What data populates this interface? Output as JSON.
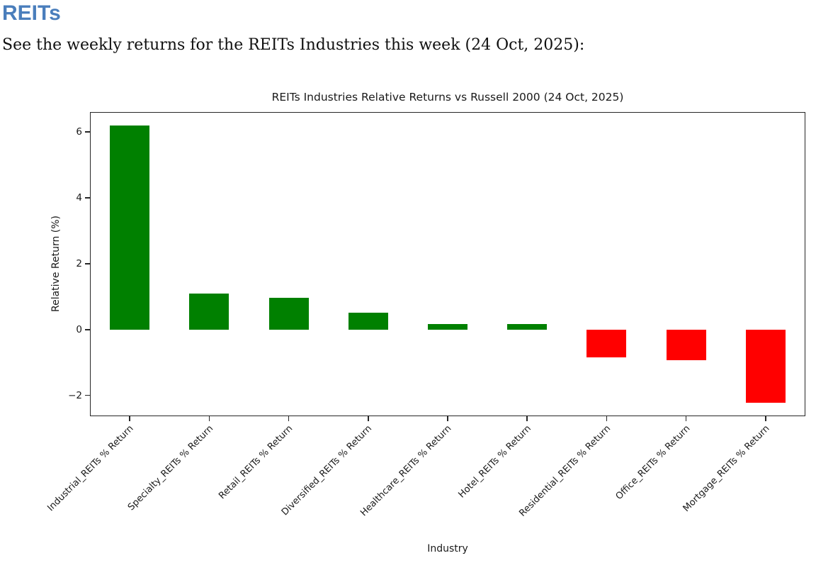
{
  "page": {
    "heading": "REITs",
    "intro": "See the weekly returns for the REITs Industries this week (24 Oct, 2025):"
  },
  "colors": {
    "heading_blue": "#4a7ebc",
    "bar_positive_green": "#008000",
    "bar_negative_red": "#ff0000",
    "axis_black": "#262626"
  },
  "chart_data": {
    "type": "bar",
    "title": "REITs Industries Relative Returns vs Russell 2000 (24 Oct, 2025)",
    "xlabel": "Industry",
    "ylabel": "Relative Return (%)",
    "categories": [
      "Industrial_REITs % Return",
      "Specialty_REITs % Return",
      "Retail_REITs % Return",
      "Diversified_REITs % Return",
      "Healthcare_REITs % Return",
      "Hotel_REITs % Return",
      "Residential_REITs % Return",
      "Office_REITs % Return",
      "Mortgage_REITs % Return"
    ],
    "values": [
      6.2,
      1.1,
      0.97,
      0.52,
      0.17,
      0.17,
      -0.85,
      -0.92,
      -2.23
    ],
    "positive_color": "#008000",
    "negative_color": "#ff0000",
    "yticks": [
      6,
      4,
      2,
      0,
      -2
    ],
    "ytick_labels": [
      "6",
      "4",
      "2",
      "0",
      "−2"
    ],
    "ylim": [
      -2.63,
      6.6
    ],
    "xtick_rotation_deg": 45,
    "bar_rel_width": 0.5,
    "grid": false,
    "legend": false
  }
}
